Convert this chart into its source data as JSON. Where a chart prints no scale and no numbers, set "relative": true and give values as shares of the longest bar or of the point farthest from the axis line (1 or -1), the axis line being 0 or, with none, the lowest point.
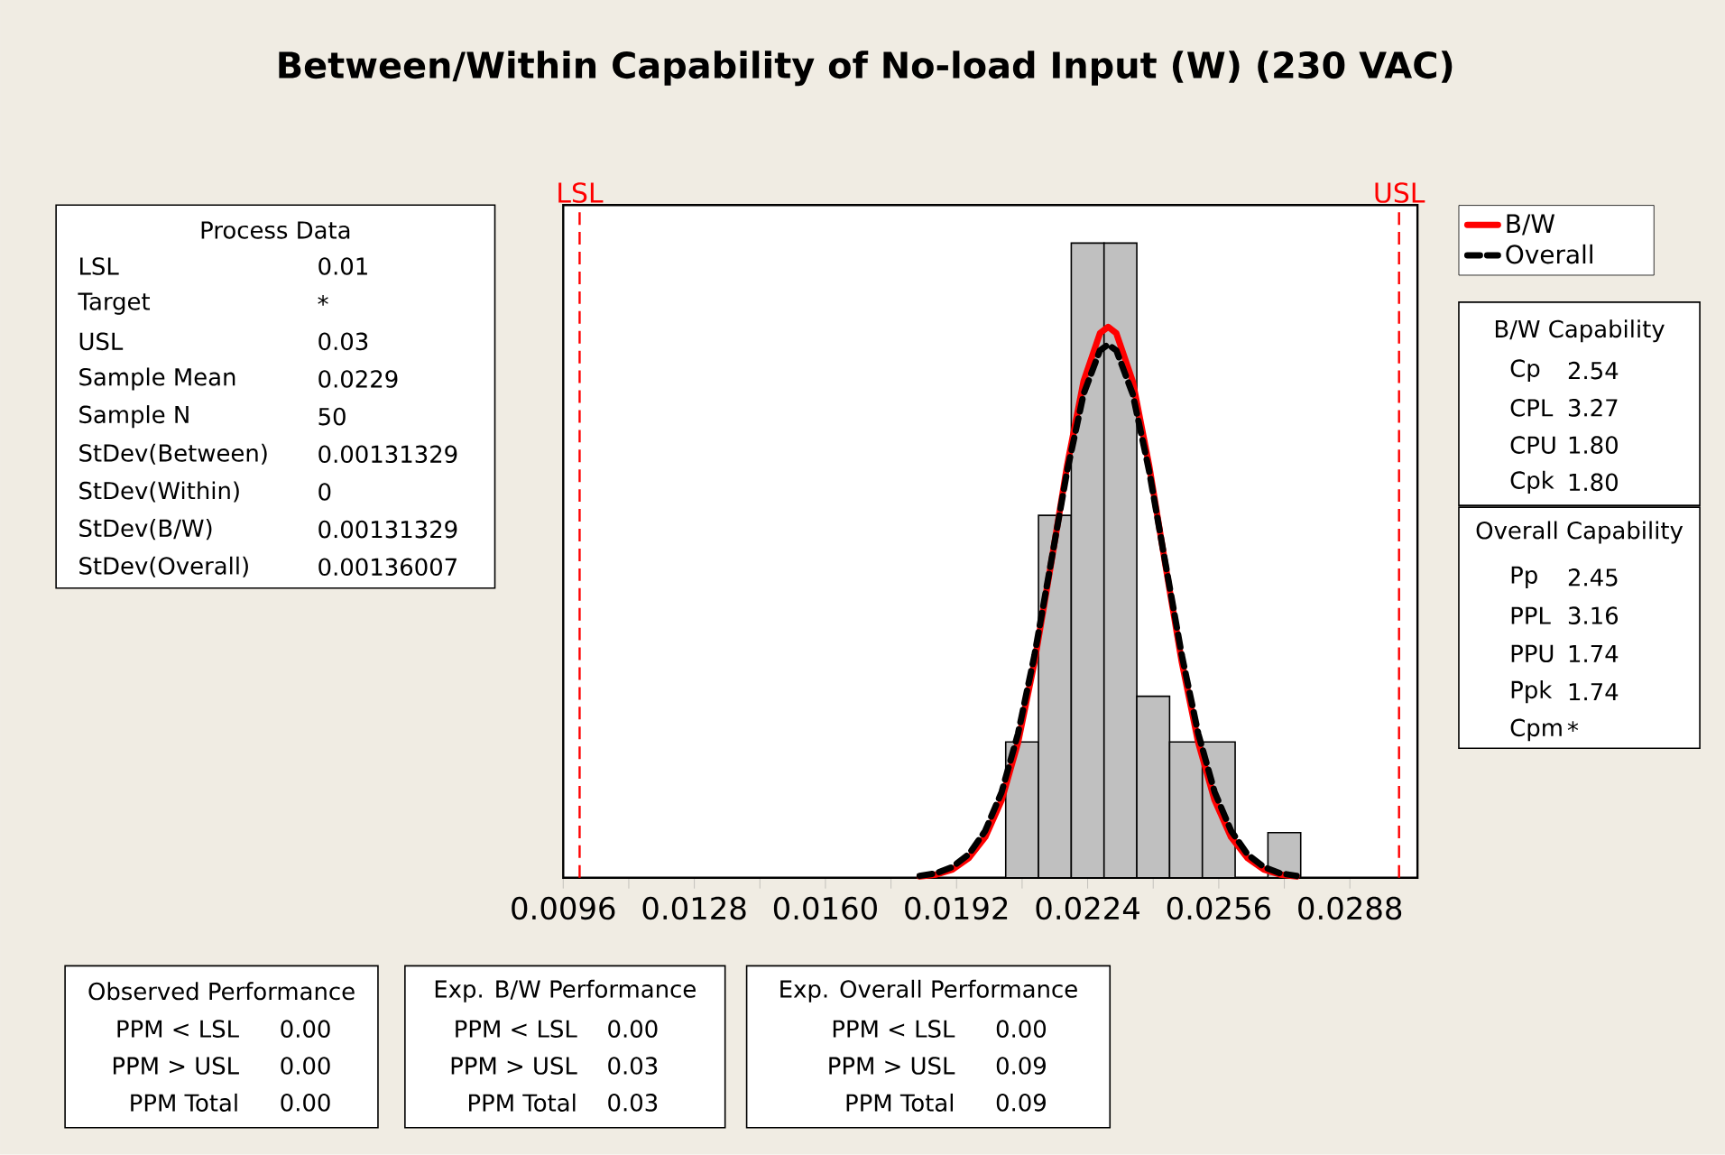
{
  "chart_data": {
    "type": "histogram",
    "title": "Between/Within Capability of No-load Input (W) (230 VAC)",
    "relative": true,
    "bins": [
      0.0204,
      0.0212,
      0.022,
      0.0228,
      0.0236,
      0.0244,
      0.0252,
      0.026,
      0.0268,
      0.0276
    ],
    "values": [
      0.214,
      0.571,
      1,
      1,
      0.286,
      0.214,
      0.214,
      0,
      0.071
    ],
    "color": "#c0c0c0",
    "series": [
      {
        "name": "B/W",
        "type": "line",
        "color": "#ff0000",
        "line_style": "solid",
        "x": [
          0.0183,
          0.0187,
          0.0191,
          0.0195,
          0.0199,
          0.0203,
          0.0207,
          0.0211,
          0.0215,
          0.0219,
          0.0223,
          0.0227,
          0.0229,
          0.0231,
          0.0235,
          0.0239,
          0.0243,
          0.0247,
          0.0251,
          0.0255,
          0.0259,
          0.0263,
          0.0267,
          0.0271,
          0.0275
        ],
        "values": [
          0.002,
          0.005,
          0.013,
          0.031,
          0.064,
          0.122,
          0.213,
          0.339,
          0.492,
          0.65,
          0.782,
          0.858,
          0.868,
          0.858,
          0.782,
          0.65,
          0.492,
          0.339,
          0.213,
          0.122,
          0.064,
          0.031,
          0.013,
          0.005,
          0.002
        ]
      },
      {
        "name": "Overall",
        "type": "line",
        "color": "#000000",
        "line_style": "dashed",
        "x": [
          0.0183,
          0.0187,
          0.0191,
          0.0195,
          0.0199,
          0.0203,
          0.0207,
          0.0211,
          0.0215,
          0.0219,
          0.0223,
          0.0227,
          0.0229,
          0.0231,
          0.0235,
          0.0239,
          0.0243,
          0.0247,
          0.0251,
          0.0255,
          0.0259,
          0.0263,
          0.0267,
          0.0271,
          0.0275
        ],
        "values": [
          0.003,
          0.007,
          0.017,
          0.037,
          0.074,
          0.135,
          0.227,
          0.35,
          0.495,
          0.641,
          0.762,
          0.831,
          0.84,
          0.831,
          0.762,
          0.641,
          0.495,
          0.35,
          0.227,
          0.135,
          0.074,
          0.037,
          0.017,
          0.007,
          0.003
        ]
      }
    ],
    "xlim": [
      0.0096,
      0.03045
    ],
    "xticks": [
      0.0096,
      {
        "value": 0.0112,
        "label": null
      },
      0.0128,
      {
        "value": 0.0144,
        "label": null
      },
      {
        "value": 0.016,
        "label": "0.0160"
      },
      {
        "value": 0.0176,
        "label": null
      },
      0.0192,
      {
        "value": 0.0208,
        "label": null
      },
      0.0224,
      {
        "value": 0.024,
        "label": null
      },
      0.0256,
      {
        "value": 0.0272,
        "label": null
      },
      0.0288
    ],
    "ref_lines": [
      {
        "axis": "x",
        "value": 0.01,
        "label": "LSL",
        "color": "#ff0000",
        "line_style": "dashed"
      },
      {
        "axis": "x",
        "value": 0.03,
        "label": "USL",
        "color": "#ff0000",
        "line_style": "dashed"
      }
    ],
    "legend": "right",
    "annotations": [
      "Process Data",
      "LSL",
      "0.01",
      "Target",
      "*",
      "USL",
      "0.03",
      "Sample Mean",
      "0.0229",
      "Sample N",
      "50",
      "StDev(Between)",
      "0.00131329",
      "StDev(Within)",
      "0",
      "StDev(B/W)",
      "0.00131329",
      "StDev(Overall)",
      "0.00136007",
      "B/W Capability",
      "Cp",
      "2.54",
      "CPL",
      "3.27",
      "CPU",
      "1.80",
      "Cpk",
      "1.80",
      "Overall Capability",
      "Pp",
      "2.45",
      "PPL",
      "3.16",
      "PPU",
      "1.74",
      "Ppk",
      "1.74",
      "Cpm",
      "*",
      "Observed Performance",
      "PPM < LSL",
      "0.00",
      "PPM > USL",
      "0.00",
      "PPM Total",
      "0.00",
      "Exp. B/W Performance",
      "PPM < LSL",
      "0.00",
      "PPM > USL",
      "0.03",
      "PPM Total",
      "0.03",
      "Exp. Overall Performance",
      "PPM < LSL",
      "0.00",
      "PPM > USL",
      "0.09",
      "PPM Total",
      "0.09"
    ]
  }
}
